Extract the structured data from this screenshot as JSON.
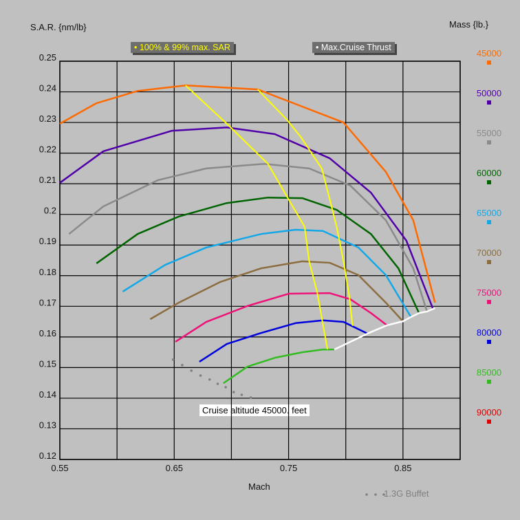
{
  "chart_data": {
    "type": "line",
    "ylabel": "S.A.R. {nm/lb}",
    "xlabel": "Mach",
    "legend_title": "Mass {lb.}",
    "xlim": [
      0.55,
      0.9
    ],
    "ylim": [
      0.12,
      0.25
    ],
    "grid": true,
    "x_ticks": [
      "0.55",
      "0.65",
      "0.75",
      "0.85"
    ],
    "x_tick_values": [
      0.55,
      0.65,
      0.75,
      0.85
    ],
    "x_grid_step": 0.05,
    "y_ticks": [
      "0.25",
      "0.24",
      "0.23",
      "0.22",
      "0.21",
      "0.2",
      "0.19",
      "0.18",
      "0.17",
      "0.16",
      "0.15",
      "0.14",
      "0.13",
      "0.12"
    ],
    "y_tick_values": [
      0.25,
      0.24,
      0.23,
      0.22,
      0.21,
      0.2,
      0.19,
      0.18,
      0.17,
      0.16,
      0.15,
      0.14,
      0.13,
      0.12
    ],
    "badges": {
      "max_sar": "• 100% & 99% max. SAR",
      "max_thrust": "• Max.Cruise Thrust"
    },
    "annotation": "Cruise altitude 45000. feet",
    "buffet_label": "1.3G Buffet",
    "series": [
      {
        "name": "45000",
        "color": "#ff6a00",
        "x": [
          0.55,
          0.582,
          0.618,
          0.66,
          0.723,
          0.798,
          0.835,
          0.859,
          0.878
        ],
        "y": [
          0.2296,
          0.2363,
          0.2403,
          0.2421,
          0.2408,
          0.23,
          0.2139,
          0.1981,
          0.1712
        ]
      },
      {
        "name": "50000",
        "color": "#5000a8",
        "x": [
          0.55,
          0.588,
          0.648,
          0.696,
          0.738,
          0.786,
          0.822,
          0.853,
          0.876
        ],
        "y": [
          0.2103,
          0.2206,
          0.2273,
          0.2284,
          0.2262,
          0.2183,
          0.2071,
          0.1914,
          0.1694
        ]
      },
      {
        "name": "55000",
        "color": "#8a8a8a",
        "x": [
          0.558,
          0.588,
          0.636,
          0.678,
          0.729,
          0.768,
          0.804,
          0.835,
          0.859,
          0.871
        ],
        "y": [
          0.1936,
          0.2026,
          0.2112,
          0.215,
          0.2165,
          0.215,
          0.2094,
          0.1981,
          0.1824,
          0.1683
        ]
      },
      {
        "name": "60000",
        "color": "#006400",
        "x": [
          0.582,
          0.618,
          0.654,
          0.696,
          0.732,
          0.762,
          0.792,
          0.822,
          0.846,
          0.864
        ],
        "y": [
          0.184,
          0.1936,
          0.1993,
          0.2037,
          0.2055,
          0.2053,
          0.2015,
          0.1936,
          0.1824,
          0.1678
        ]
      },
      {
        "name": "65000",
        "color": "#12a8e8",
        "x": [
          0.605,
          0.642,
          0.678,
          0.726,
          0.756,
          0.78,
          0.811,
          0.835,
          0.857
        ],
        "y": [
          0.1748,
          0.1835,
          0.1892,
          0.1936,
          0.195,
          0.1946,
          0.1892,
          0.1802,
          0.1665
        ]
      },
      {
        "name": "70000",
        "color": "#8b6d3f",
        "x": [
          0.629,
          0.654,
          0.69,
          0.726,
          0.762,
          0.786,
          0.811,
          0.835,
          0.85
        ],
        "y": [
          0.1658,
          0.1712,
          0.1779,
          0.1824,
          0.1847,
          0.1842,
          0.1802,
          0.1712,
          0.1651
        ]
      },
      {
        "name": "75000",
        "color": "#ee1177",
        "x": [
          0.651,
          0.678,
          0.714,
          0.75,
          0.786,
          0.804,
          0.822,
          0.836
        ],
        "y": [
          0.1584,
          0.1649,
          0.1701,
          0.1741,
          0.1743,
          0.1723,
          0.1678,
          0.1638
        ]
      },
      {
        "name": "80000",
        "color": "#0000dd",
        "x": [
          0.672,
          0.696,
          0.726,
          0.756,
          0.78,
          0.798,
          0.819
        ],
        "y": [
          0.1519,
          0.1577,
          0.1613,
          0.1645,
          0.1654,
          0.1649,
          0.1611
        ]
      },
      {
        "name": "85000",
        "color": "#33bb22",
        "x": [
          0.693,
          0.714,
          0.738,
          0.762,
          0.78,
          0.79
        ],
        "y": [
          0.1449,
          0.1503,
          0.1532,
          0.155,
          0.1559,
          0.1559
        ]
      },
      {
        "name": "90000",
        "color": "#dd0000",
        "x": [],
        "y": []
      }
    ],
    "max_sar_100": {
      "color": "#ffff00",
      "x": [
        0.66,
        0.696,
        0.732,
        0.75,
        0.764,
        0.768,
        0.775,
        0.784
      ],
      "y": [
        0.2421,
        0.2296,
        0.2165,
        0.2049,
        0.196,
        0.1847,
        0.1746,
        0.1559
      ]
    },
    "max_sar_99": {
      "color": "#ffff00",
      "x": [
        0.723,
        0.749,
        0.761,
        0.779,
        0.786,
        0.792,
        0.798,
        0.803,
        0.806
      ],
      "y": [
        0.2408,
        0.2307,
        0.2251,
        0.215,
        0.2049,
        0.196,
        0.1847,
        0.1734,
        0.1636
      ]
    },
    "max_cruise_thrust": {
      "color": "#ffffff",
      "x": [
        0.79,
        0.819,
        0.836,
        0.85,
        0.857,
        0.864,
        0.871,
        0.878
      ],
      "y": [
        0.1559,
        0.1611,
        0.1638,
        0.1651,
        0.1665,
        0.1678,
        0.1683,
        0.1694
      ]
    },
    "buffet": {
      "color": "#808080",
      "x": [
        0.649,
        0.657,
        0.665,
        0.673,
        0.681,
        0.688,
        0.695,
        0.702,
        0.709,
        0.717
      ],
      "y": [
        0.1526,
        0.1508,
        0.149,
        0.1474,
        0.1461,
        0.1447,
        0.1436,
        0.142,
        0.1411,
        0.1402
      ]
    }
  }
}
